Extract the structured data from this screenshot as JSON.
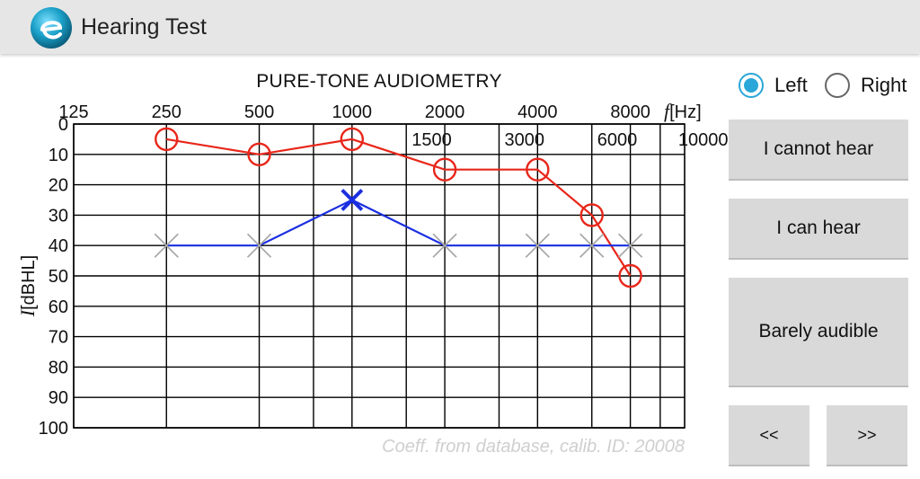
{
  "app": {
    "title": "Hearing Test",
    "icon": "app-logo-icon"
  },
  "chart_data": {
    "type": "line",
    "title": "PURE-TONE AUDIOMETRY",
    "xlabel_italic": "f",
    "xlabel_unit": "[Hz]",
    "ylabel_italic": "I",
    "ylabel_unit": "[dBHL]",
    "x_scale": "log",
    "x_ticks_top": [
      125,
      250,
      500,
      1000,
      2000,
      4000,
      8000
    ],
    "x_ticks_bottom": [
      1500,
      3000,
      6000,
      10000
    ],
    "x_minor_gridlines": [
      750
    ],
    "xlim": [
      125,
      12000
    ],
    "y_ticks": [
      0,
      10,
      20,
      30,
      40,
      50,
      60,
      70,
      80,
      90,
      100
    ],
    "ylim": [
      0,
      100
    ],
    "y_inverted": true,
    "grid": true,
    "footnote": "Coeff. from database, calib. ID: 20008",
    "series": [
      {
        "marker": "circle",
        "color": "#e8261a",
        "points": [
          {
            "x": 250,
            "y": 5
          },
          {
            "x": 500,
            "y": 10
          },
          {
            "x": 1000,
            "y": 5
          },
          {
            "x": 2000,
            "y": 15
          },
          {
            "x": 4000,
            "y": 15
          },
          {
            "x": 6000,
            "y": 30
          },
          {
            "x": 8000,
            "y": 50
          }
        ]
      },
      {
        "marker": "cross",
        "color": "#1a2ee0",
        "marker_color": "#aaaaaa",
        "highlight_marker_color": "#1a2ee0",
        "highlight_index": 2,
        "points": [
          {
            "x": 250,
            "y": 40
          },
          {
            "x": 500,
            "y": 40
          },
          {
            "x": 1000,
            "y": 25
          },
          {
            "x": 2000,
            "y": 40
          },
          {
            "x": 4000,
            "y": 40
          },
          {
            "x": 6000,
            "y": 40
          },
          {
            "x": 8000,
            "y": 40
          }
        ]
      }
    ]
  },
  "ear_select": {
    "options": [
      {
        "label": "Left",
        "checked": true
      },
      {
        "label": "Right",
        "checked": false
      }
    ],
    "accent": "#2aa7d8"
  },
  "buttons": {
    "cannot_hear": "I cannot hear",
    "can_hear": "I can hear",
    "barely_audible": "Barely audible",
    "prev": "<<",
    "next": ">>"
  }
}
